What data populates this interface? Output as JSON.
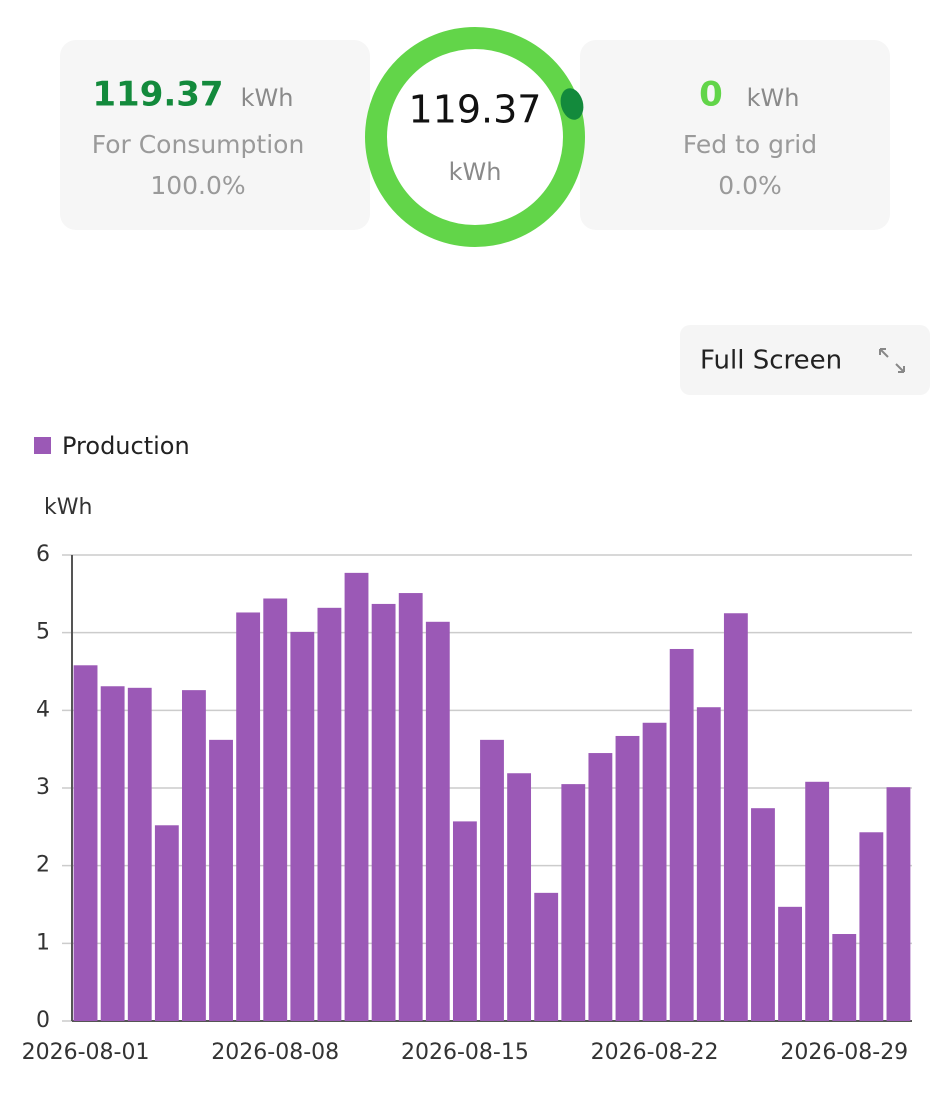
{
  "summary": {
    "consumption": {
      "value": "119.37",
      "unit": "kWh",
      "label": "For Consumption",
      "percent": "100.0%"
    },
    "total": {
      "value": "119.37",
      "unit": "kWh"
    },
    "grid": {
      "value": "0",
      "unit": "kWh",
      "label": "Fed to grid",
      "percent": "0.0%"
    }
  },
  "full_screen": "Full Screen",
  "chart_data": {
    "type": "bar",
    "y_label": "kWh",
    "categories": [
      "2026-08-01",
      null,
      null,
      null,
      null,
      null,
      null,
      "2026-08-08",
      null,
      null,
      null,
      null,
      null,
      null,
      "2026-08-15",
      null,
      null,
      null,
      null,
      null,
      null,
      "2026-08-22",
      null,
      null,
      null,
      null,
      null,
      null,
      "2026-08-29",
      null,
      null
    ],
    "series": [
      {
        "name": "Production",
        "color": "#9b59b6",
        "values": [
          4.58,
          4.31,
          4.29,
          2.52,
          4.26,
          3.62,
          5.26,
          5.44,
          5.01,
          5.32,
          5.77,
          5.37,
          5.51,
          5.14,
          2.57,
          3.62,
          3.19,
          1.65,
          3.05,
          3.45,
          3.67,
          3.84,
          4.79,
          4.04,
          5.25,
          2.74,
          1.47,
          3.08,
          1.12,
          2.43,
          3.01
        ]
      }
    ],
    "ylim": [
      0,
      6
    ],
    "yticks": [
      0,
      1,
      2,
      3,
      4,
      5,
      6
    ],
    "grid": true,
    "legend": "top-left"
  }
}
